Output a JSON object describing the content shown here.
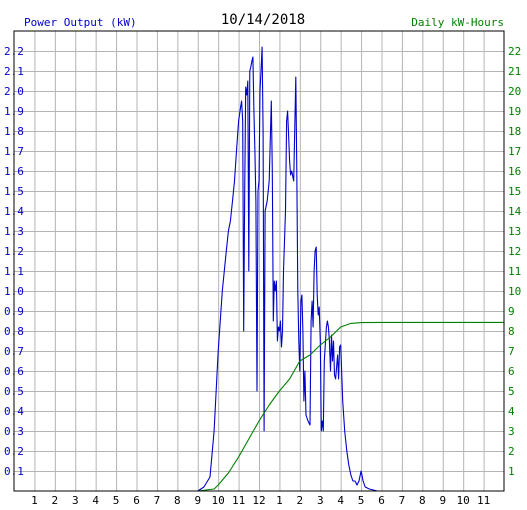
{
  "chart_data": {
    "type": "line",
    "title": "10/14/2018",
    "left_axis_label": "Power Output (kW)",
    "right_axis_label": "Daily kW-Hours",
    "left_axis_color": "#0000cc",
    "right_axis_color": "#008000",
    "grid": true,
    "y_left": {
      "min": 0,
      "max": 2.3,
      "ticks": [
        "0.1",
        "0.2",
        "0.3",
        "0.4",
        "0.5",
        "0.6",
        "0.7",
        "0.8",
        "0.9",
        "1.0",
        "1.1",
        "1.2",
        "1.3",
        "1.4",
        "1.5",
        "1.6",
        "1.7",
        "1.8",
        "1.9",
        "2.0",
        "2.1",
        "2.2"
      ]
    },
    "y_right": {
      "min": 0,
      "max": 23,
      "ticks": [
        "1",
        "2",
        "3",
        "4",
        "5",
        "6",
        "7",
        "8",
        "9",
        "10",
        "11",
        "12",
        "13",
        "14",
        "15",
        "16",
        "17",
        "18",
        "19",
        "20",
        "21",
        "22"
      ]
    },
    "x_axis": {
      "min_hour": 0,
      "max_hour": 24,
      "tick_labels": [
        "1",
        "2",
        "3",
        "4",
        "5",
        "6",
        "7",
        "8",
        "9",
        "10",
        "11",
        "12",
        "1",
        "2",
        "3",
        "4",
        "5",
        "6",
        "7",
        "8",
        "9",
        "10",
        "11"
      ]
    },
    "series": [
      {
        "color": "#0000cc",
        "axis": "left",
        "points": [
          [
            8.3,
            0
          ],
          [
            9.0,
            0
          ],
          [
            9.3,
            0.02
          ],
          [
            9.6,
            0.07
          ],
          [
            9.8,
            0.3
          ],
          [
            10.0,
            0.7
          ],
          [
            10.2,
            1.0
          ],
          [
            10.4,
            1.2
          ],
          [
            10.5,
            1.3
          ],
          [
            10.6,
            1.35
          ],
          [
            10.7,
            1.45
          ],
          [
            10.8,
            1.55
          ],
          [
            10.9,
            1.7
          ],
          [
            11.0,
            1.85
          ],
          [
            11.1,
            1.92
          ],
          [
            11.15,
            1.95
          ],
          [
            11.2,
            1.85
          ],
          [
            11.25,
            0.8
          ],
          [
            11.3,
            1.5
          ],
          [
            11.35,
            2.02
          ],
          [
            11.4,
            1.98
          ],
          [
            11.45,
            2.05
          ],
          [
            11.5,
            1.1
          ],
          [
            11.55,
            2.1
          ],
          [
            11.6,
            2.12
          ],
          [
            11.65,
            2.15
          ],
          [
            11.7,
            2.17
          ],
          [
            11.75,
            1.9
          ],
          [
            11.8,
            1.7
          ],
          [
            11.85,
            1.45
          ],
          [
            11.9,
            0.5
          ],
          [
            11.95,
            1.5
          ],
          [
            12.0,
            1.55
          ],
          [
            12.05,
            2.0
          ],
          [
            12.1,
            2.1
          ],
          [
            12.15,
            2.22
          ],
          [
            12.2,
            1.8
          ],
          [
            12.25,
            0.3
          ],
          [
            12.3,
            1.4
          ],
          [
            12.4,
            1.45
          ],
          [
            12.5,
            1.55
          ],
          [
            12.6,
            1.95
          ],
          [
            12.65,
            1.6
          ],
          [
            12.7,
            0.85
          ],
          [
            12.75,
            1.05
          ],
          [
            12.8,
            1.0
          ],
          [
            12.85,
            1.05
          ],
          [
            12.9,
            0.75
          ],
          [
            12.95,
            0.82
          ],
          [
            13.0,
            0.8
          ],
          [
            13.05,
            0.85
          ],
          [
            13.1,
            0.72
          ],
          [
            13.15,
            0.8
          ],
          [
            13.2,
            1.1
          ],
          [
            13.3,
            1.4
          ],
          [
            13.35,
            1.85
          ],
          [
            13.4,
            1.9
          ],
          [
            13.45,
            1.78
          ],
          [
            13.5,
            1.65
          ],
          [
            13.55,
            1.58
          ],
          [
            13.6,
            1.6
          ],
          [
            13.7,
            1.55
          ],
          [
            13.8,
            2.07
          ],
          [
            13.85,
            1.6
          ],
          [
            13.9,
            1.0
          ],
          [
            13.95,
            0.75
          ],
          [
            14.0,
            0.6
          ],
          [
            14.05,
            0.95
          ],
          [
            14.1,
            0.98
          ],
          [
            14.15,
            0.8
          ],
          [
            14.2,
            0.45
          ],
          [
            14.25,
            0.6
          ],
          [
            14.3,
            0.38
          ],
          [
            14.4,
            0.35
          ],
          [
            14.5,
            0.33
          ],
          [
            14.55,
            0.85
          ],
          [
            14.6,
            0.95
          ],
          [
            14.65,
            0.82
          ],
          [
            14.7,
            1.1
          ],
          [
            14.75,
            1.2
          ],
          [
            14.8,
            1.22
          ],
          [
            14.85,
            0.98
          ],
          [
            14.9,
            0.88
          ],
          [
            14.95,
            0.92
          ],
          [
            15.0,
            0.75
          ],
          [
            15.05,
            0.3
          ],
          [
            15.1,
            0.35
          ],
          [
            15.15,
            0.3
          ],
          [
            15.2,
            0.65
          ],
          [
            15.3,
            0.82
          ],
          [
            15.35,
            0.85
          ],
          [
            15.4,
            0.82
          ],
          [
            15.45,
            0.75
          ],
          [
            15.5,
            0.6
          ],
          [
            15.55,
            0.78
          ],
          [
            15.6,
            0.65
          ],
          [
            15.65,
            0.75
          ],
          [
            15.7,
            0.58
          ],
          [
            15.75,
            0.56
          ],
          [
            15.8,
            0.62
          ],
          [
            15.85,
            0.68
          ],
          [
            15.9,
            0.56
          ],
          [
            15.95,
            0.72
          ],
          [
            16.0,
            0.73
          ],
          [
            16.1,
            0.45
          ],
          [
            16.2,
            0.3
          ],
          [
            16.3,
            0.2
          ],
          [
            16.4,
            0.13
          ],
          [
            16.5,
            0.08
          ],
          [
            16.6,
            0.05
          ],
          [
            16.7,
            0.05
          ],
          [
            16.8,
            0.03
          ],
          [
            16.9,
            0.05
          ],
          [
            17.0,
            0.1
          ],
          [
            17.1,
            0.05
          ],
          [
            17.2,
            0.02
          ],
          [
            17.4,
            0.01
          ],
          [
            17.8,
            0
          ]
        ]
      },
      {
        "color": "#008000",
        "axis": "right",
        "points": [
          [
            9.0,
            0
          ],
          [
            9.8,
            0.1
          ],
          [
            10.0,
            0.3
          ],
          [
            10.5,
            0.9
          ],
          [
            11.0,
            1.7
          ],
          [
            11.5,
            2.6
          ],
          [
            12.0,
            3.5
          ],
          [
            12.5,
            4.3
          ],
          [
            13.0,
            5.0
          ],
          [
            13.5,
            5.6
          ],
          [
            14.0,
            6.5
          ],
          [
            14.5,
            6.8
          ],
          [
            15.0,
            7.3
          ],
          [
            15.5,
            7.7
          ],
          [
            16.0,
            8.2
          ],
          [
            16.5,
            8.38
          ],
          [
            17.0,
            8.42
          ],
          [
            18.0,
            8.43
          ],
          [
            24.0,
            8.43
          ]
        ]
      }
    ]
  }
}
